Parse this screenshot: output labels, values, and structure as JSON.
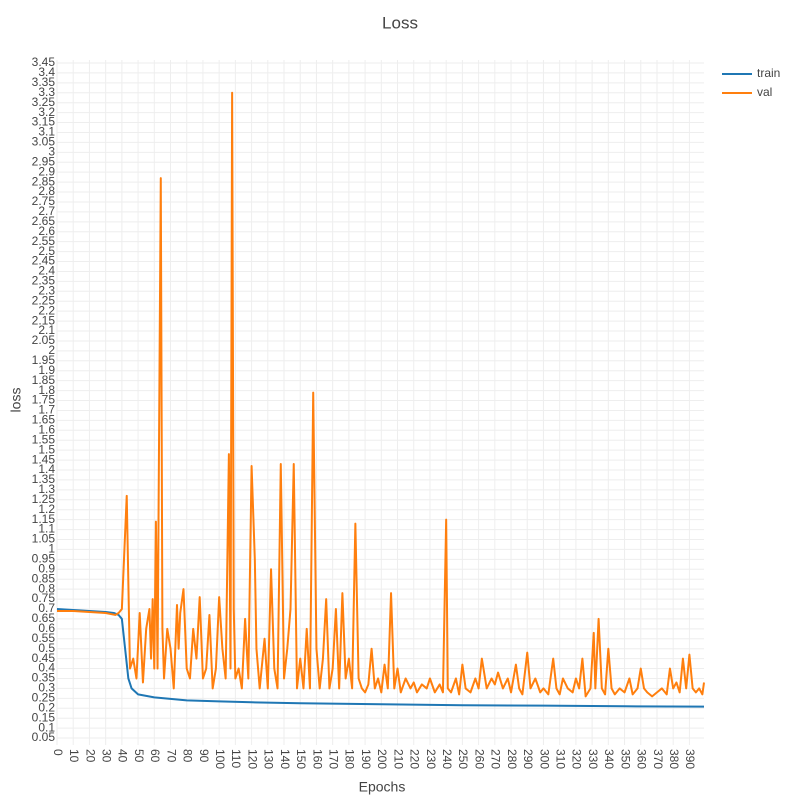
{
  "chart_data": {
    "type": "line",
    "title": "Loss",
    "x_label": "Epochs",
    "y_label": "loss",
    "xlim": [
      0,
      399
    ],
    "ylim": [
      0.015,
      3.465
    ],
    "grid": true,
    "legend": "right",
    "xticks": [
      0,
      10,
      20,
      30,
      40,
      50,
      60,
      70,
      80,
      90,
      100,
      110,
      120,
      130,
      140,
      150,
      160,
      170,
      180,
      190,
      200,
      210,
      220,
      230,
      240,
      250,
      260,
      270,
      280,
      290,
      300,
      310,
      320,
      330,
      340,
      350,
      360,
      370,
      380,
      390
    ],
    "yticks": [
      0.05,
      0.1,
      0.15,
      0.2,
      0.25,
      0.3,
      0.35,
      0.4,
      0.45,
      0.5,
      0.55,
      0.6,
      0.65,
      0.7,
      0.75,
      0.8,
      0.85,
      0.9,
      0.95,
      1,
      1.05,
      1.1,
      1.15,
      1.2,
      1.25,
      1.3,
      1.35,
      1.4,
      1.45,
      1.5,
      1.55,
      1.6,
      1.65,
      1.7,
      1.75,
      1.8,
      1.85,
      1.9,
      1.95,
      2,
      2.05,
      2.1,
      2.15,
      2.2,
      2.25,
      2.3,
      2.35,
      2.4,
      2.45,
      2.5,
      2.55,
      2.6,
      2.65,
      2.7,
      2.75,
      2.8,
      2.85,
      2.9,
      2.95,
      3,
      3.05,
      3.1,
      3.15,
      3.2,
      3.25,
      3.3,
      3.35,
      3.4,
      3.45
    ],
    "series": [
      {
        "name": "train",
        "color": "#1f77b4",
        "x": [
          0,
          10,
          20,
          30,
          35,
          38,
          40,
          42,
          44,
          46,
          50,
          60,
          80,
          100,
          120,
          150,
          200,
          250,
          300,
          350,
          399
        ],
        "values": [
          0.7,
          0.695,
          0.69,
          0.685,
          0.68,
          0.67,
          0.65,
          0.5,
          0.35,
          0.3,
          0.27,
          0.255,
          0.24,
          0.235,
          0.23,
          0.225,
          0.22,
          0.215,
          0.213,
          0.21,
          0.208
        ]
      },
      {
        "name": "val",
        "color": "#ff7f0e",
        "x": [
          0,
          10,
          20,
          30,
          36,
          38,
          40,
          43,
          45,
          47,
          49,
          51,
          53,
          55,
          57,
          58,
          59,
          60,
          61,
          62,
          64,
          65,
          66,
          68,
          70,
          72,
          74,
          75,
          76,
          78,
          80,
          82,
          84,
          86,
          88,
          90,
          92,
          94,
          96,
          98,
          100,
          102,
          104,
          106,
          107,
          108,
          109,
          110,
          112,
          114,
          116,
          118,
          120,
          122,
          123,
          125,
          128,
          130,
          132,
          134,
          136,
          138,
          140,
          142,
          144,
          146,
          148,
          150,
          152,
          154,
          156,
          158,
          160,
          162,
          164,
          166,
          168,
          170,
          172,
          174,
          176,
          178,
          180,
          182,
          184,
          186,
          188,
          190,
          192,
          194,
          196,
          198,
          200,
          202,
          204,
          206,
          208,
          210,
          212,
          215,
          218,
          220,
          222,
          225,
          228,
          230,
          233,
          236,
          238,
          240,
          241,
          243,
          246,
          248,
          250,
          252,
          255,
          258,
          260,
          262,
          265,
          268,
          270,
          272,
          275,
          278,
          280,
          283,
          285,
          287,
          290,
          292,
          295,
          298,
          300,
          303,
          306,
          308,
          310,
          312,
          315,
          318,
          320,
          322,
          324,
          326,
          329,
          331,
          332,
          334,
          336,
          338,
          340,
          342,
          344,
          347,
          350,
          353,
          355,
          358,
          360,
          362,
          364,
          367,
          370,
          373,
          376,
          378,
          380,
          382,
          384,
          386,
          388,
          390,
          392,
          394,
          396,
          398,
          399
        ],
        "values": [
          0.69,
          0.69,
          0.685,
          0.68,
          0.67,
          0.68,
          0.7,
          1.27,
          0.4,
          0.45,
          0.35,
          0.68,
          0.33,
          0.6,
          0.7,
          0.45,
          0.75,
          0.4,
          1.14,
          0.4,
          2.87,
          0.6,
          0.35,
          0.6,
          0.5,
          0.3,
          0.72,
          0.5,
          0.68,
          0.8,
          0.4,
          0.35,
          0.6,
          0.45,
          0.76,
          0.35,
          0.4,
          0.67,
          0.3,
          0.4,
          0.76,
          0.5,
          0.35,
          1.48,
          0.4,
          3.3,
          0.7,
          0.35,
          0.4,
          0.3,
          0.65,
          0.35,
          1.42,
          0.95,
          0.5,
          0.3,
          0.55,
          0.3,
          0.9,
          0.4,
          0.3,
          1.43,
          0.35,
          0.5,
          0.7,
          1.43,
          0.3,
          0.45,
          0.3,
          0.6,
          0.3,
          1.79,
          0.5,
          0.3,
          0.45,
          0.75,
          0.3,
          0.4,
          0.7,
          0.3,
          0.78,
          0.35,
          0.45,
          0.3,
          1.13,
          0.35,
          0.3,
          0.28,
          0.32,
          0.5,
          0.3,
          0.35,
          0.28,
          0.42,
          0.3,
          0.78,
          0.3,
          0.4,
          0.28,
          0.35,
          0.3,
          0.33,
          0.28,
          0.32,
          0.3,
          0.35,
          0.28,
          0.32,
          0.28,
          1.15,
          0.3,
          0.28,
          0.35,
          0.27,
          0.42,
          0.3,
          0.28,
          0.35,
          0.3,
          0.45,
          0.3,
          0.35,
          0.32,
          0.38,
          0.3,
          0.35,
          0.28,
          0.42,
          0.3,
          0.27,
          0.48,
          0.3,
          0.35,
          0.28,
          0.3,
          0.27,
          0.45,
          0.3,
          0.27,
          0.35,
          0.3,
          0.28,
          0.35,
          0.3,
          0.45,
          0.26,
          0.3,
          0.58,
          0.3,
          0.65,
          0.3,
          0.27,
          0.5,
          0.3,
          0.27,
          0.3,
          0.28,
          0.35,
          0.27,
          0.3,
          0.4,
          0.3,
          0.28,
          0.26,
          0.28,
          0.3,
          0.27,
          0.4,
          0.3,
          0.33,
          0.28,
          0.45,
          0.3,
          0.47,
          0.3,
          0.28,
          0.3,
          0.27,
          0.33
        ]
      }
    ]
  }
}
